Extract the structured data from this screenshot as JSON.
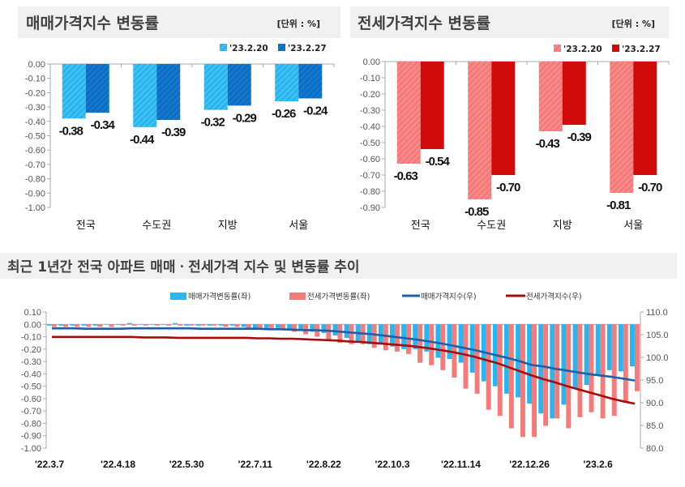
{
  "chart_data": [
    {
      "type": "bar",
      "title": "매매가격지수 변동률",
      "unit_label": "[단위 : %]",
      "categories": [
        "전국",
        "수도권",
        "지방",
        "서울"
      ],
      "series": [
        {
          "name": "'23.2.20",
          "values": [
            -0.38,
            -0.44,
            -0.32,
            -0.26
          ]
        },
        {
          "name": "'23.2.27",
          "values": [
            -0.34,
            -0.39,
            -0.29,
            -0.24
          ]
        }
      ],
      "data_labels": [
        [
          "-0.38",
          "-0.44",
          "-0.32",
          "-0.26"
        ],
        [
          "-0.34",
          "-0.39",
          "-0.29",
          "-0.24"
        ]
      ],
      "ylim": [
        -1.0,
        0.0
      ],
      "yticks": [
        "0.00",
        "-0.10",
        "-0.20",
        "-0.30",
        "-0.40",
        "-0.50",
        "-0.60",
        "-0.70",
        "-0.80",
        "-0.90",
        "-1.00"
      ],
      "legend": "top-right",
      "colors": [
        "#29b6ef",
        "#0b6fc6"
      ]
    },
    {
      "type": "bar",
      "title": "전세가격지수 변동률",
      "unit_label": "[단위 : %]",
      "categories": [
        "전국",
        "수도권",
        "지방",
        "서울"
      ],
      "series": [
        {
          "name": "'23.2.20",
          "values": [
            -0.63,
            -0.85,
            -0.43,
            -0.81
          ]
        },
        {
          "name": "'23.2.27",
          "values": [
            -0.54,
            -0.7,
            -0.39,
            -0.7
          ]
        }
      ],
      "data_labels": [
        [
          "-0.63",
          "-0.85",
          "-0.43",
          "-0.81"
        ],
        [
          "-0.54",
          "-0.70",
          "-0.39",
          "-0.70"
        ]
      ],
      "ylim": [
        -0.9,
        0.0
      ],
      "yticks": [
        "0.00",
        "-0.10",
        "-0.20",
        "-0.30",
        "-0.40",
        "-0.50",
        "-0.60",
        "-0.70",
        "-0.80",
        "-0.90"
      ],
      "legend": "top-right",
      "colors": [
        "#f57a7a",
        "#d10a0a"
      ]
    },
    {
      "type": "bar+line",
      "title": "최근 1년간 전국 아파트 매매ㆍ전세가격 지수 및 변동률 추이",
      "x_tick_labels": [
        "'22.3.7",
        "'22.4.18",
        "'22.5.30",
        "'22.7.11",
        "'22.8.22",
        "'22.10.3",
        "'22.11.14",
        "'22.12.26",
        "'23.2.6"
      ],
      "x_range": [
        "'22.3.7",
        "'23.2.27"
      ],
      "x_interval": "weekly",
      "ylim_left": [
        -1.0,
        0.1
      ],
      "yticks_left": [
        "0.10",
        "0.00",
        "-0.10",
        "-0.20",
        "-0.30",
        "-0.40",
        "-0.50",
        "-0.60",
        "-0.70",
        "-0.80",
        "-0.90",
        "-1.00"
      ],
      "ylim_right": [
        80.0,
        110.0
      ],
      "yticks_right": [
        "110.0",
        "105.0",
        "100.0",
        "95.0",
        "90.0",
        "85.0",
        "80.0"
      ],
      "legend": "top",
      "series": [
        {
          "name": "매매가격변동률(좌)",
          "type": "bar",
          "axis": "left",
          "color": "#29b6ef",
          "values": [
            -0.01,
            -0.01,
            -0.01,
            -0.01,
            -0.01,
            0.0,
            0.0,
            0.01,
            0.0,
            0.0,
            0.0,
            0.01,
            -0.01,
            -0.01,
            -0.01,
            -0.01,
            -0.01,
            -0.02,
            -0.03,
            -0.03,
            -0.03,
            -0.04,
            -0.05,
            -0.06,
            -0.07,
            -0.09,
            -0.11,
            -0.14,
            -0.16,
            -0.16,
            -0.18,
            -0.2,
            -0.2,
            -0.22,
            -0.27,
            -0.28,
            -0.31,
            -0.39,
            -0.46,
            -0.5,
            -0.56,
            -0.59,
            -0.64,
            -0.72,
            -0.76,
            -0.65,
            -0.52,
            -0.49,
            -0.41,
            -0.37,
            -0.38,
            -0.34
          ]
        },
        {
          "name": "전세가격변동률(좌)",
          "type": "bar",
          "axis": "left",
          "color": "#f57a7a",
          "values": [
            -0.02,
            -0.02,
            -0.02,
            -0.02,
            -0.02,
            -0.02,
            -0.01,
            -0.01,
            -0.01,
            -0.01,
            -0.01,
            -0.01,
            -0.01,
            -0.01,
            -0.01,
            -0.02,
            -0.02,
            -0.03,
            -0.03,
            -0.03,
            -0.04,
            -0.06,
            -0.08,
            -0.1,
            -0.13,
            -0.15,
            -0.16,
            -0.16,
            -0.19,
            -0.21,
            -0.22,
            -0.24,
            -0.31,
            -0.33,
            -0.37,
            -0.43,
            -0.52,
            -0.56,
            -0.69,
            -0.74,
            -0.84,
            -0.91,
            -0.91,
            -0.82,
            -0.76,
            -0.84,
            -0.75,
            -0.71,
            -0.76,
            -0.74,
            -0.63,
            -0.54
          ]
        },
        {
          "name": "매매가격지수(우)",
          "type": "line",
          "axis": "right",
          "color": "#1f5fa8",
          "values": [
            106.4,
            106.4,
            106.4,
            106.3,
            106.3,
            106.3,
            106.3,
            106.4,
            106.4,
            106.4,
            106.4,
            106.4,
            106.4,
            106.3,
            106.3,
            106.3,
            106.3,
            106.3,
            106.3,
            106.2,
            106.2,
            106.1,
            106.0,
            106.0,
            105.9,
            105.7,
            105.5,
            105.3,
            105.1,
            104.8,
            104.5,
            104.2,
            103.9,
            103.5,
            103.1,
            102.6,
            102.1,
            101.6,
            101.0,
            100.4,
            99.8,
            99.1,
            98.3,
            98.0,
            97.5,
            97.1,
            96.7,
            96.3,
            96.0,
            95.7,
            95.3,
            94.9
          ]
        },
        {
          "name": "전세가격지수(우)",
          "type": "line",
          "axis": "right",
          "color": "#a50d0d",
          "values": [
            104.5,
            104.5,
            104.5,
            104.5,
            104.5,
            104.5,
            104.5,
            104.5,
            104.4,
            104.4,
            104.4,
            104.3,
            104.3,
            104.3,
            104.3,
            104.3,
            104.3,
            104.3,
            104.2,
            104.2,
            104.1,
            104.1,
            104.0,
            103.9,
            103.8,
            103.7,
            103.5,
            103.4,
            103.2,
            103.0,
            102.8,
            102.6,
            102.3,
            102.0,
            101.6,
            101.2,
            100.7,
            100.1,
            99.4,
            98.7,
            97.8,
            96.9,
            96.0,
            95.2,
            94.5,
            93.7,
            93.0,
            92.3,
            91.6,
            90.9,
            90.3,
            89.8
          ]
        }
      ]
    }
  ]
}
